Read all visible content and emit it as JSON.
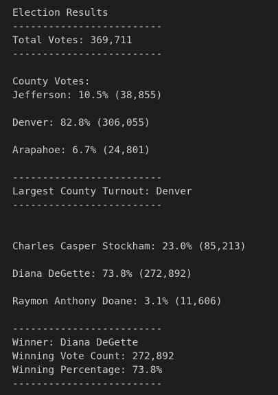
{
  "output": {
    "title": "Election Results",
    "separator": "-------------------------",
    "total_votes": "Total Votes: 369,711",
    "county_votes_header": "County Votes:",
    "counties": [
      "Jefferson: 10.5% (38,855)",
      "Denver: 82.8% (306,055)",
      "Arapahoe: 6.7% (24,801)"
    ],
    "largest_county": "Largest County Turnout: Denver",
    "candidates": [
      "Charles Casper Stockham: 23.0% (85,213)",
      "Diana DeGette: 73.8% (272,892)",
      "Raymon Anthony Doane: 3.1% (11,606)"
    ],
    "winner": "Winner: Diana DeGette",
    "winning_vote_count": "Winning Vote Count: 272,892",
    "winning_percentage": "Winning Percentage: 73.8%"
  },
  "colors": {
    "background": "#1e1e1e",
    "text": "#cccccc"
  }
}
